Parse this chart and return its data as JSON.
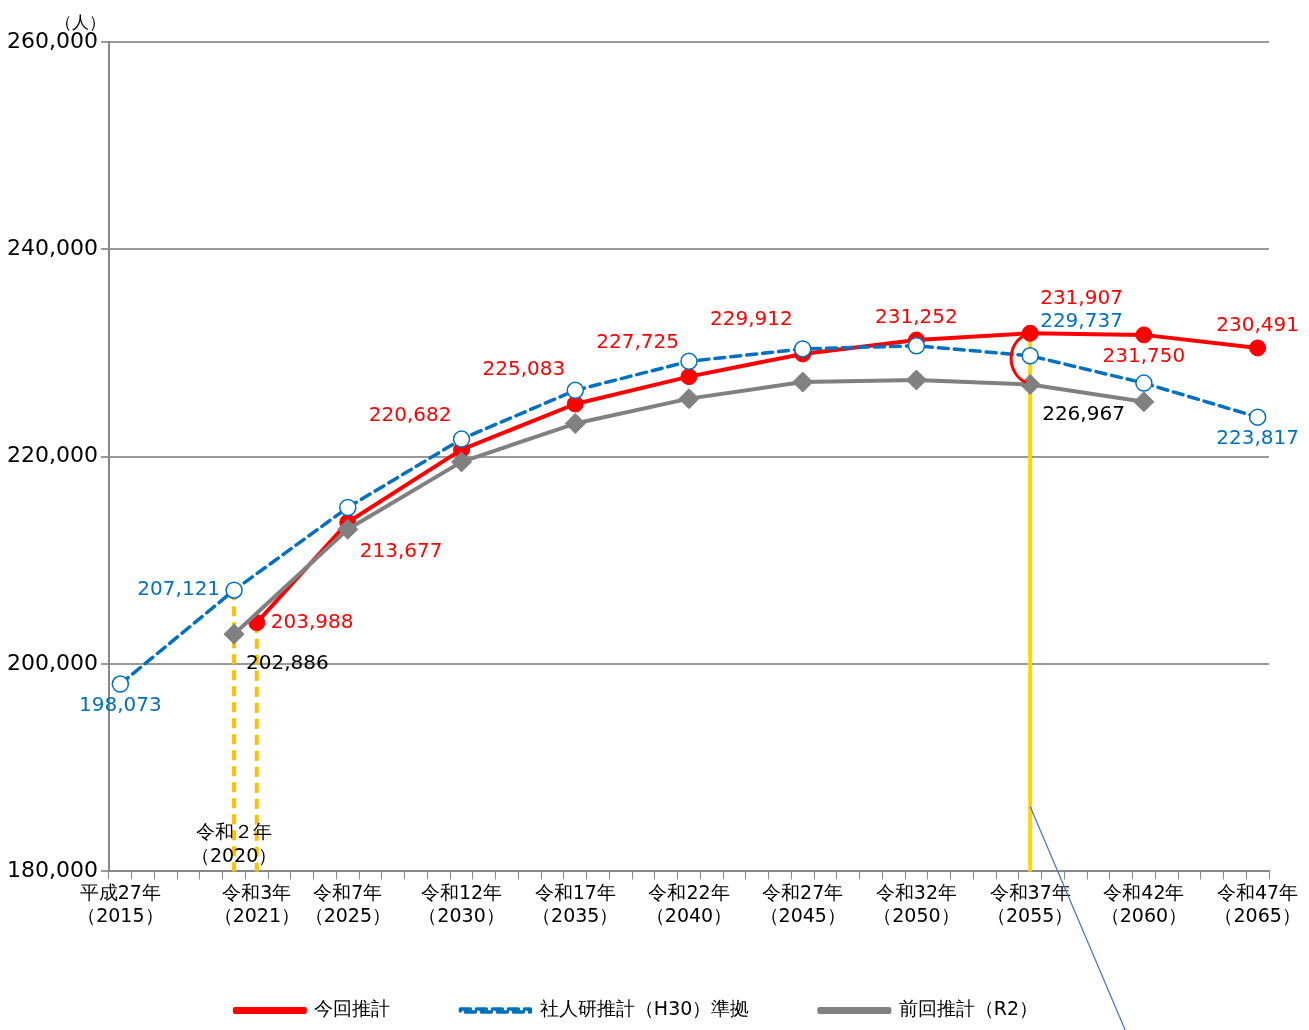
{
  "chart_data": {
    "type": "line",
    "ylabel": "（人）",
    "categories": [
      "平成27年（2015）",
      null,
      null,
      null,
      null,
      "令和２年（2020）",
      "令和3年（2021）",
      null,
      null,
      null,
      "令和7年（2025）",
      null,
      null,
      null,
      null,
      "令和12年（2030）",
      null,
      null,
      null,
      null,
      "令和17年（2035）",
      null,
      null,
      null,
      null,
      "令和22年（2040）",
      null,
      null,
      null,
      null,
      "令和27年（2045）",
      null,
      null,
      null,
      null,
      "令和32年（2050）",
      null,
      null,
      null,
      null,
      "令和37年（2055）",
      null,
      null,
      null,
      null,
      "令和42年（2060）",
      null,
      null,
      null,
      null,
      "令和47年（2065）"
    ],
    "ylim": [
      180000,
      260000
    ],
    "yticks": [
      {
        "value": 180000,
        "label": "180,000"
      },
      {
        "value": 200000,
        "label": "200,000"
      },
      {
        "value": 220000,
        "label": "220,000"
      },
      {
        "value": 240000,
        "label": "240,000"
      },
      {
        "value": 260000,
        "label": "260,000"
      }
    ],
    "grid": "y",
    "legend": "bottom",
    "series": [
      {
        "name": "今回推計",
        "color": "#ff0000",
        "marker": "circle",
        "line_style": "solid",
        "values": [
          null,
          null,
          null,
          null,
          null,
          null,
          203988,
          null,
          null,
          null,
          213677,
          null,
          null,
          null,
          null,
          220682,
          null,
          null,
          null,
          null,
          225083,
          null,
          null,
          null,
          null,
          227725,
          null,
          null,
          null,
          null,
          229912,
          null,
          null,
          null,
          null,
          231252,
          null,
          null,
          null,
          null,
          231907,
          null,
          null,
          null,
          null,
          231750,
          null,
          null,
          null,
          null,
          230491
        ],
        "value_labels": [
          null,
          null,
          null,
          null,
          null,
          null,
          "203,988",
          null,
          null,
          null,
          "213,677",
          null,
          null,
          null,
          null,
          "220,682",
          null,
          null,
          null,
          null,
          "225,083",
          null,
          null,
          null,
          null,
          "227,725",
          null,
          null,
          null,
          null,
          "229,912",
          null,
          null,
          null,
          null,
          "231,252",
          null,
          null,
          null,
          null,
          "231,907",
          null,
          null,
          null,
          null,
          "231,750",
          null,
          null,
          null,
          null,
          "230,491"
        ]
      },
      {
        "name": "社人研推計（H30）準拠",
        "color": "#0070c0",
        "marker": "circle",
        "line_style": "dashed",
        "values": [
          198073,
          null,
          null,
          null,
          null,
          207121,
          null,
          null,
          null,
          null,
          215100,
          null,
          null,
          null,
          null,
          221700,
          null,
          null,
          null,
          null,
          226400,
          null,
          null,
          null,
          null,
          229200,
          null,
          null,
          null,
          null,
          230400,
          null,
          null,
          null,
          null,
          230700,
          null,
          null,
          null,
          null,
          229737,
          null,
          null,
          null,
          null,
          227100,
          null,
          null,
          null,
          null,
          223817
        ],
        "value_labels": [
          "198,073",
          null,
          null,
          null,
          null,
          "207,121",
          null,
          null,
          null,
          null,
          null,
          null,
          null,
          null,
          null,
          null,
          null,
          null,
          null,
          null,
          null,
          null,
          null,
          null,
          null,
          null,
          null,
          null,
          null,
          null,
          null,
          null,
          null,
          null,
          null,
          null,
          null,
          null,
          null,
          null,
          "229,737",
          null,
          null,
          null,
          null,
          null,
          null,
          null,
          null,
          null,
          "223,817"
        ]
      },
      {
        "name": "前回推計（R2）",
        "color": "#808080",
        "marker": "diamond",
        "line_style": "solid",
        "values": [
          null,
          null,
          null,
          null,
          null,
          202886,
          null,
          null,
          null,
          null,
          213000,
          null,
          null,
          null,
          null,
          219500,
          null,
          null,
          null,
          null,
          223200,
          null,
          null,
          null,
          null,
          225600,
          null,
          null,
          null,
          null,
          227200,
          null,
          null,
          null,
          null,
          227400,
          null,
          null,
          null,
          null,
          226967,
          null,
          null,
          null,
          null,
          225300,
          null,
          null,
          null,
          null,
          null
        ],
        "value_labels": [
          null,
          null,
          null,
          null,
          null,
          "202,886",
          null,
          null,
          null,
          null,
          null,
          null,
          null,
          null,
          null,
          null,
          null,
          null,
          null,
          null,
          null,
          null,
          null,
          null,
          null,
          null,
          null,
          null,
          null,
          null,
          null,
          null,
          null,
          null,
          null,
          null,
          null,
          null,
          null,
          null,
          "226,967",
          null,
          null,
          null,
          null,
          null,
          null,
          null,
          null,
          null,
          null
        ]
      }
    ],
    "ref_lines": [
      {
        "axis": "x",
        "value": "令和２年（2020）",
        "color": "#ffc000",
        "line_style": "dashed"
      },
      {
        "axis": "x",
        "value": "令和3年（2021）",
        "color": "#ffc000",
        "line_style": "dashed"
      },
      {
        "axis": "x",
        "value": "令和37年（2055）",
        "color": "#ffd700",
        "line_style": "solid"
      }
    ]
  }
}
